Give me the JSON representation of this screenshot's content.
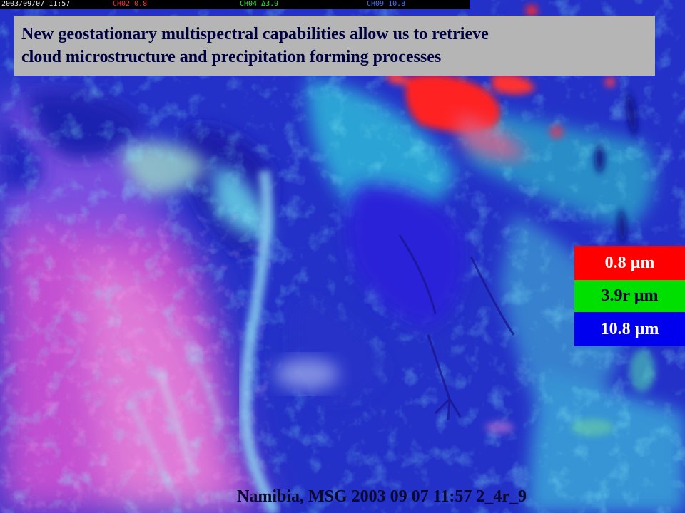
{
  "header_bar": {
    "date": "2003/09/07 11:57",
    "channel_red": "CH02  0.8",
    "channel_green": "CH04 Δ3.9",
    "channel_blue": "CH09 10.8"
  },
  "title": {
    "line1": "New geostationary multispectral capabilities allow us to retrieve",
    "line2": "cloud microstructure and precipitation forming processes"
  },
  "legend": {
    "items": [
      {
        "label": "0.8 µm",
        "color": "#ff0000"
      },
      {
        "label": "3.9r µm",
        "color": "#00e000"
      },
      {
        "label": "10.8 µm",
        "color": "#0000ee"
      }
    ]
  },
  "caption": "Namibia, MSG 2003 09 07 11:57 2_4r_9",
  "colors": {
    "ocean_cloud": "#c04ad0",
    "land": "#2a3ad8",
    "convective_red": "#ff1a1a",
    "cyan_haze": "#40e0e0"
  }
}
